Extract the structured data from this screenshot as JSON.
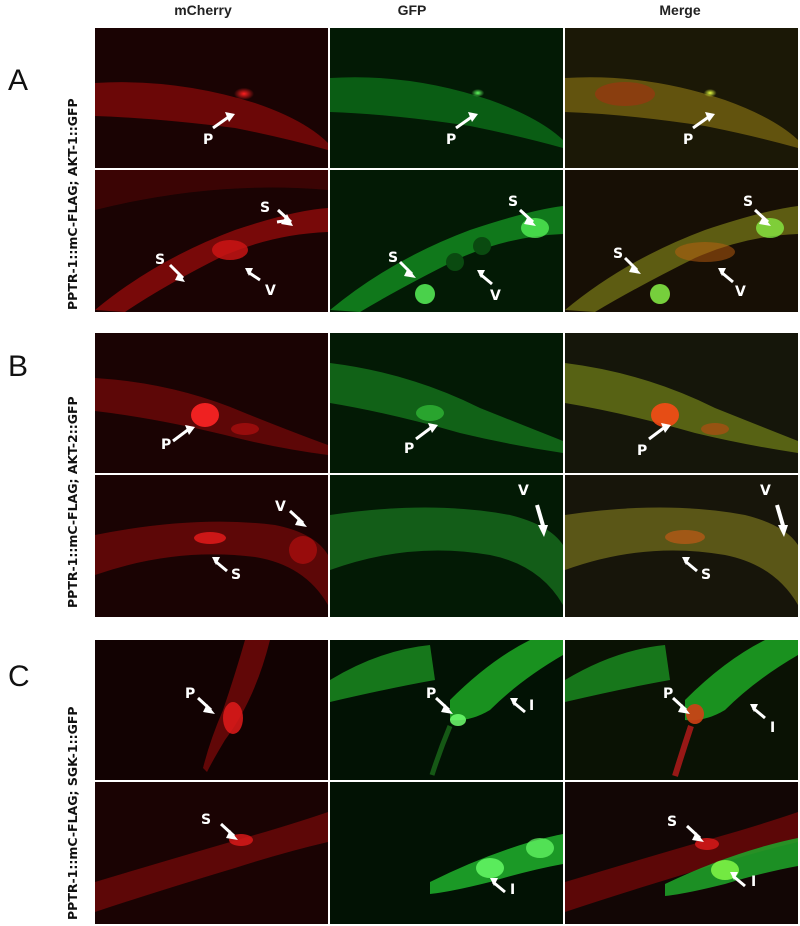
{
  "columns": [
    "mCherry",
    "GFP",
    "Merge"
  ],
  "panels": [
    {
      "letter": "A",
      "side_label": "PPTR-1::mC-FLAG; AKT-1::GFP"
    },
    {
      "letter": "B",
      "side_label": "PPTR-1::mC-FLAG; AKT-2::GFP"
    },
    {
      "letter": "C",
      "side_label": "PPTR-1::mC-FLAG; SGK-1::GFP"
    }
  ],
  "arrow_labels": {
    "P": "P",
    "S": "S",
    "V": "V",
    "I": "I"
  }
}
